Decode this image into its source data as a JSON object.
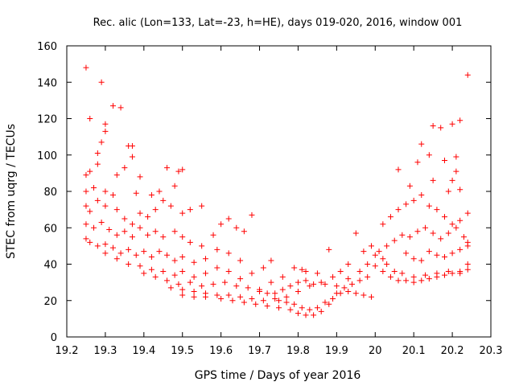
{
  "chart_data": {
    "type": "scatter",
    "title": "Rec. alic (Lon=133, Lat=-23, h=HE), days 019-020, 2016, window 001",
    "xlabel": "GPS time / Days of year 2016",
    "ylabel": "STEC from uqrg / TECUs",
    "xlim": [
      19.2,
      20.3
    ],
    "ylim": [
      0,
      160
    ],
    "xticks": [
      19.2,
      19.3,
      19.4,
      19.5,
      19.6,
      19.7,
      19.8,
      19.9,
      20,
      20.1,
      20.2,
      20.3
    ],
    "xtick_labels": [
      "19.2",
      "19.3",
      "19.4",
      "19.5",
      "19.6",
      "19.7",
      "19.8",
      "19.9",
      "20",
      "20.1",
      "20.2",
      "20.3"
    ],
    "yticks": [
      0,
      20,
      40,
      60,
      80,
      100,
      120,
      140,
      160
    ],
    "ytick_labels": [
      "0",
      "20",
      "40",
      "60",
      "80",
      "100",
      "120",
      "140",
      "160"
    ],
    "grid": false,
    "marker": "+",
    "color": "#ff0000",
    "points": [
      [
        19.25,
        148
      ],
      [
        19.26,
        120
      ],
      [
        19.29,
        140
      ],
      [
        19.3,
        117
      ],
      [
        19.32,
        127
      ],
      [
        19.34,
        126
      ],
      [
        19.3,
        113
      ],
      [
        19.36,
        105
      ],
      [
        19.37,
        105
      ],
      [
        19.28,
        101
      ],
      [
        19.29,
        107
      ],
      [
        19.25,
        89
      ],
      [
        19.26,
        91
      ],
      [
        19.28,
        95
      ],
      [
        19.33,
        89
      ],
      [
        19.35,
        93
      ],
      [
        19.37,
        99
      ],
      [
        19.39,
        88
      ],
      [
        19.25,
        80
      ],
      [
        19.27,
        82
      ],
      [
        19.3,
        80
      ],
      [
        19.32,
        78
      ],
      [
        19.38,
        79
      ],
      [
        19.42,
        78
      ],
      [
        19.44,
        80
      ],
      [
        19.46,
        93
      ],
      [
        19.48,
        83
      ],
      [
        19.49,
        91
      ],
      [
        19.5,
        92
      ],
      [
        19.25,
        72
      ],
      [
        19.26,
        69
      ],
      [
        19.28,
        75
      ],
      [
        19.3,
        72
      ],
      [
        19.33,
        70
      ],
      [
        19.35,
        65
      ],
      [
        19.37,
        62
      ],
      [
        19.39,
        68
      ],
      [
        19.41,
        66
      ],
      [
        19.43,
        70
      ],
      [
        19.45,
        75
      ],
      [
        19.47,
        72
      ],
      [
        19.5,
        68
      ],
      [
        19.52,
        70
      ],
      [
        19.55,
        72
      ],
      [
        19.25,
        62
      ],
      [
        19.27,
        60
      ],
      [
        19.29,
        63
      ],
      [
        19.31,
        59
      ],
      [
        19.33,
        56
      ],
      [
        19.35,
        58
      ],
      [
        19.37,
        55
      ],
      [
        19.39,
        60
      ],
      [
        19.41,
        56
      ],
      [
        19.43,
        58
      ],
      [
        19.45,
        55
      ],
      [
        19.48,
        58
      ],
      [
        19.5,
        55
      ],
      [
        19.52,
        52
      ],
      [
        19.55,
        50
      ],
      [
        19.58,
        56
      ],
      [
        19.6,
        62
      ],
      [
        19.62,
        65
      ],
      [
        19.64,
        60
      ],
      [
        19.66,
        58
      ],
      [
        19.68,
        67
      ],
      [
        19.25,
        54
      ],
      [
        19.26,
        52
      ],
      [
        19.28,
        50
      ],
      [
        19.3,
        51
      ],
      [
        19.32,
        49
      ],
      [
        19.34,
        46
      ],
      [
        19.36,
        48
      ],
      [
        19.38,
        45
      ],
      [
        19.4,
        47
      ],
      [
        19.42,
        44
      ],
      [
        19.44,
        47
      ],
      [
        19.46,
        45
      ],
      [
        19.48,
        42
      ],
      [
        19.5,
        44
      ],
      [
        19.53,
        41
      ],
      [
        19.56,
        43
      ],
      [
        19.59,
        48
      ],
      [
        19.62,
        46
      ],
      [
        19.65,
        42
      ],
      [
        19.3,
        46
      ],
      [
        19.33,
        43
      ],
      [
        19.36,
        40
      ],
      [
        19.39,
        39
      ],
      [
        19.42,
        37
      ],
      [
        19.45,
        36
      ],
      [
        19.48,
        34
      ],
      [
        19.5,
        36
      ],
      [
        19.53,
        33
      ],
      [
        19.56,
        35
      ],
      [
        19.59,
        38
      ],
      [
        19.62,
        36
      ],
      [
        19.65,
        32
      ],
      [
        19.68,
        35
      ],
      [
        19.71,
        38
      ],
      [
        19.73,
        42
      ],
      [
        19.4,
        35
      ],
      [
        19.43,
        33
      ],
      [
        19.46,
        31
      ],
      [
        19.49,
        29
      ],
      [
        19.52,
        30
      ],
      [
        19.55,
        28
      ],
      [
        19.58,
        29
      ],
      [
        19.61,
        30
      ],
      [
        19.64,
        28
      ],
      [
        19.67,
        27
      ],
      [
        19.7,
        26
      ],
      [
        19.73,
        30
      ],
      [
        19.76,
        33
      ],
      [
        19.79,
        38
      ],
      [
        19.81,
        37
      ],
      [
        19.47,
        27
      ],
      [
        19.5,
        26
      ],
      [
        19.53,
        25
      ],
      [
        19.56,
        24
      ],
      [
        19.59,
        23
      ],
      [
        19.62,
        23
      ],
      [
        19.65,
        22
      ],
      [
        19.68,
        21
      ],
      [
        19.71,
        20
      ],
      [
        19.74,
        21
      ],
      [
        19.77,
        22
      ],
      [
        19.8,
        25
      ],
      [
        19.83,
        28
      ],
      [
        19.86,
        30
      ],
      [
        19.89,
        33
      ],
      [
        19.5,
        23
      ],
      [
        19.53,
        22
      ],
      [
        19.56,
        22
      ],
      [
        19.6,
        21
      ],
      [
        19.63,
        20
      ],
      [
        19.66,
        19
      ],
      [
        19.69,
        18
      ],
      [
        19.72,
        17
      ],
      [
        19.75,
        16
      ],
      [
        19.78,
        15
      ],
      [
        19.8,
        13
      ],
      [
        19.82,
        12
      ],
      [
        19.84,
        12
      ],
      [
        19.86,
        14
      ],
      [
        19.88,
        18
      ],
      [
        19.9,
        24
      ],
      [
        19.92,
        27
      ],
      [
        19.94,
        29
      ],
      [
        19.96,
        31
      ],
      [
        19.98,
        33
      ],
      [
        19.75,
        20
      ],
      [
        19.77,
        19
      ],
      [
        19.79,
        18
      ],
      [
        19.81,
        16
      ],
      [
        19.83,
        15
      ],
      [
        19.85,
        16
      ],
      [
        19.87,
        19
      ],
      [
        19.89,
        21
      ],
      [
        19.91,
        24
      ],
      [
        19.93,
        25
      ],
      [
        19.95,
        24
      ],
      [
        19.97,
        23
      ],
      [
        19.99,
        22
      ],
      [
        19.7,
        25
      ],
      [
        19.72,
        24
      ],
      [
        19.74,
        24
      ],
      [
        19.76,
        26
      ],
      [
        19.78,
        28
      ],
      [
        19.8,
        30
      ],
      [
        19.82,
        31
      ],
      [
        19.84,
        29
      ],
      [
        19.87,
        29
      ],
      [
        19.9,
        28
      ],
      [
        19.93,
        32
      ],
      [
        19.96,
        36
      ],
      [
        19.98,
        40
      ],
      [
        19.82,
        36
      ],
      [
        19.85,
        35
      ],
      [
        19.88,
        48
      ],
      [
        19.91,
        36
      ],
      [
        19.93,
        40
      ],
      [
        19.95,
        57
      ],
      [
        19.97,
        47
      ],
      [
        19.99,
        50
      ],
      [
        20.0,
        45
      ],
      [
        20.02,
        43
      ],
      [
        20.03,
        40
      ],
      [
        20.05,
        36
      ],
      [
        20.07,
        35
      ],
      [
        20.1,
        33
      ],
      [
        20.13,
        34
      ],
      [
        20.16,
        35
      ],
      [
        20.19,
        36
      ],
      [
        20.22,
        35
      ],
      [
        20.24,
        37
      ],
      [
        20.01,
        47
      ],
      [
        20.03,
        50
      ],
      [
        20.05,
        53
      ],
      [
        20.07,
        56
      ],
      [
        20.09,
        55
      ],
      [
        20.11,
        58
      ],
      [
        20.13,
        60
      ],
      [
        20.15,
        57
      ],
      [
        20.17,
        54
      ],
      [
        20.19,
        57
      ],
      [
        20.21,
        60
      ],
      [
        20.23,
        55
      ],
      [
        20.24,
        52
      ],
      [
        20.02,
        62
      ],
      [
        20.04,
        66
      ],
      [
        20.06,
        70
      ],
      [
        20.08,
        73
      ],
      [
        20.1,
        75
      ],
      [
        20.12,
        78
      ],
      [
        20.14,
        72
      ],
      [
        20.16,
        70
      ],
      [
        20.18,
        66
      ],
      [
        20.2,
        62
      ],
      [
        20.22,
        64
      ],
      [
        20.24,
        68
      ],
      [
        20.06,
        92
      ],
      [
        20.09,
        83
      ],
      [
        20.11,
        96
      ],
      [
        20.12,
        106
      ],
      [
        20.14,
        100
      ],
      [
        20.15,
        116
      ],
      [
        20.17,
        115
      ],
      [
        20.18,
        97
      ],
      [
        20.2,
        117
      ],
      [
        20.21,
        99
      ],
      [
        20.22,
        119
      ],
      [
        20.24,
        144
      ],
      [
        20.15,
        86
      ],
      [
        20.19,
        80
      ],
      [
        20.21,
        91
      ],
      [
        20.22,
        81
      ],
      [
        20.2,
        86
      ],
      [
        20.0,
        39
      ],
      [
        20.02,
        36
      ],
      [
        20.04,
        33
      ],
      [
        20.06,
        31
      ],
      [
        20.08,
        31
      ],
      [
        20.1,
        30
      ],
      [
        20.12,
        31
      ],
      [
        20.14,
        32
      ],
      [
        20.16,
        33
      ],
      [
        20.18,
        34
      ],
      [
        20.2,
        35
      ],
      [
        20.22,
        36
      ],
      [
        20.24,
        40
      ],
      [
        20.08,
        46
      ],
      [
        20.1,
        43
      ],
      [
        20.12,
        42
      ],
      [
        20.14,
        47
      ],
      [
        20.16,
        45
      ],
      [
        20.18,
        44
      ],
      [
        20.2,
        46
      ],
      [
        20.22,
        48
      ],
      [
        20.24,
        50
      ]
    ]
  }
}
